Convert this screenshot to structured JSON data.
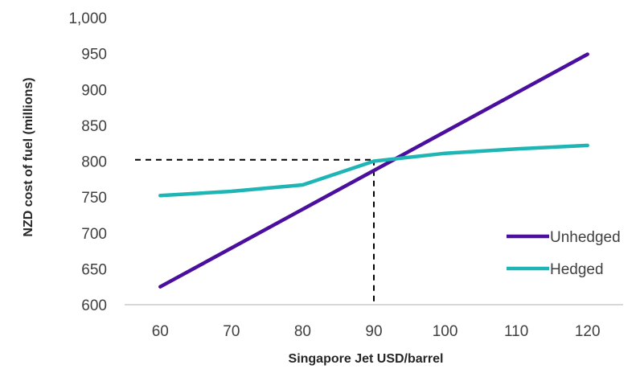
{
  "chart_data": {
    "type": "line",
    "title": "",
    "xlabel": "Singapore Jet USD/barrel",
    "ylabel": "NZD cost of fuel (millions)",
    "x": [
      60,
      70,
      80,
      90,
      100,
      110,
      120
    ],
    "x_ticks": [
      "60",
      "70",
      "80",
      "90",
      "100",
      "110",
      "120"
    ],
    "y_ticks": [
      "600",
      "650",
      "700",
      "750",
      "800",
      "850",
      "900",
      "950",
      "1,000"
    ],
    "xlim": [
      55,
      125
    ],
    "ylim": [
      600,
      1000
    ],
    "grid": false,
    "legend_position": "bottom-right",
    "series": [
      {
        "name": "Unhedged",
        "color": "#4B0F9E",
        "values": [
          625,
          679,
          733,
          787,
          841,
          895,
          949
        ]
      },
      {
        "name": "Hedged",
        "color": "#1FB5B5",
        "values": [
          752,
          758,
          767,
          800,
          811,
          817,
          822
        ]
      }
    ],
    "reference_point": {
      "x": 90,
      "y": 802,
      "style": "dashed",
      "color": "#000000"
    }
  }
}
